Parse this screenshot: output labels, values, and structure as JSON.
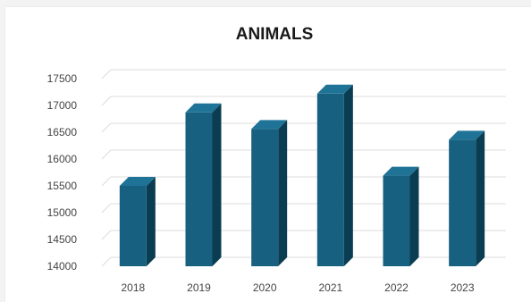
{
  "chart_data": {
    "type": "bar",
    "title": "ANIMALS",
    "categories": [
      "2018",
      "2019",
      "2020",
      "2021",
      "2022",
      "2023"
    ],
    "values": [
      15500,
      16870,
      16560,
      17220,
      15690,
      16360
    ],
    "ylim": [
      14000,
      17500
    ],
    "yticks": [
      14000,
      14500,
      15000,
      15500,
      16000,
      16500,
      17000,
      17500
    ],
    "grid": true,
    "three_d": true,
    "colors": {
      "bar_front": "#17607f",
      "bar_side": "#0b3d52",
      "bar_top": "#1f7396",
      "grid": "#dcdcdc"
    }
  }
}
